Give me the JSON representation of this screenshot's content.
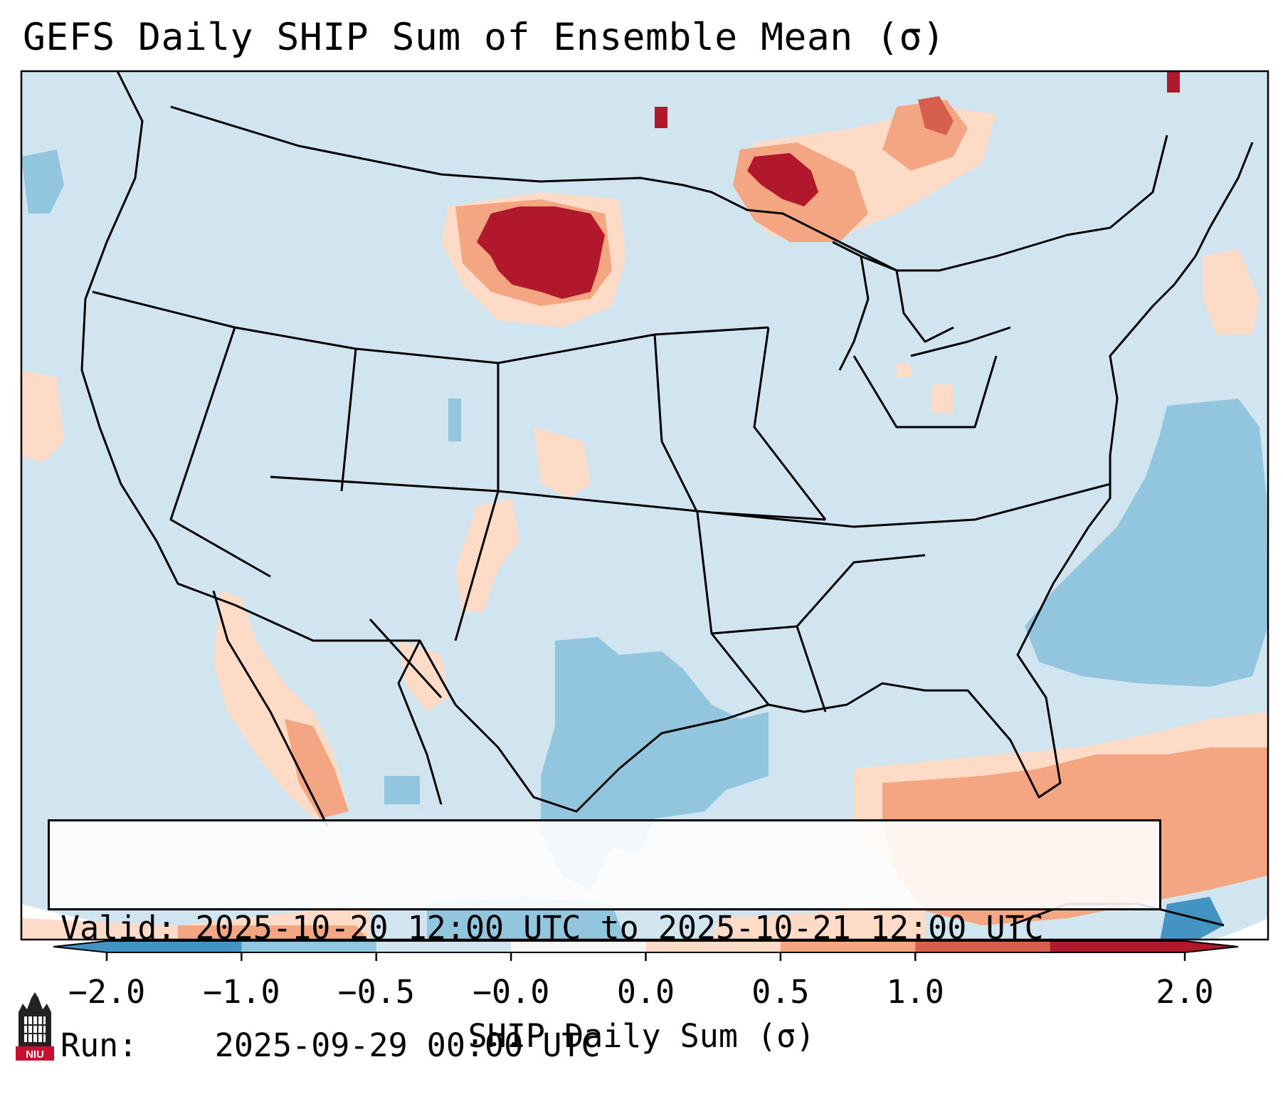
{
  "title": "GEFS Daily SHIP Sum of Ensemble Mean (σ)",
  "info": {
    "valid_label": "Valid:",
    "valid_value": "2025-10-20 12:00 UTC to 2025-10-21 12:00 UTC",
    "run_label": "Run:",
    "run_value": "2025-09-29 00:00 UTC"
  },
  "colorbar": {
    "label": "SHIP Daily Sum (σ)",
    "ticks": [
      "−2.0",
      "−1.0",
      "−0.5",
      "−0.0",
      "0.0",
      "0.5",
      "1.0",
      "2.0"
    ],
    "colors": [
      "#4393c3",
      "#92c5de",
      "#d1e5f0",
      "#f7f7f7",
      "#fddbc7",
      "#f4a582",
      "#d6604d",
      "#b2182b"
    ]
  },
  "map": {
    "region": "CONUS",
    "background_color": "#d1e5f0",
    "anomaly_areas": [
      {
        "area": "western South Dakota / southwestern North Dakota",
        "level": 2.0
      },
      {
        "area": "northern Minnesota / Lake Superior",
        "level": 2.0
      },
      {
        "area": "northwestern Ontario",
        "level": 1.0
      },
      {
        "area": "Gulf of Mexico / southern Texas",
        "level": -1.0
      },
      {
        "area": "western Atlantic off the Carolinas",
        "level": -1.0
      },
      {
        "area": "Caribbean / Cuba",
        "level": 1.0
      },
      {
        "area": "Gulf of California / Sonora",
        "level": 0.5
      }
    ]
  },
  "logo": {
    "text": "NIU",
    "color": "#c8102e"
  }
}
